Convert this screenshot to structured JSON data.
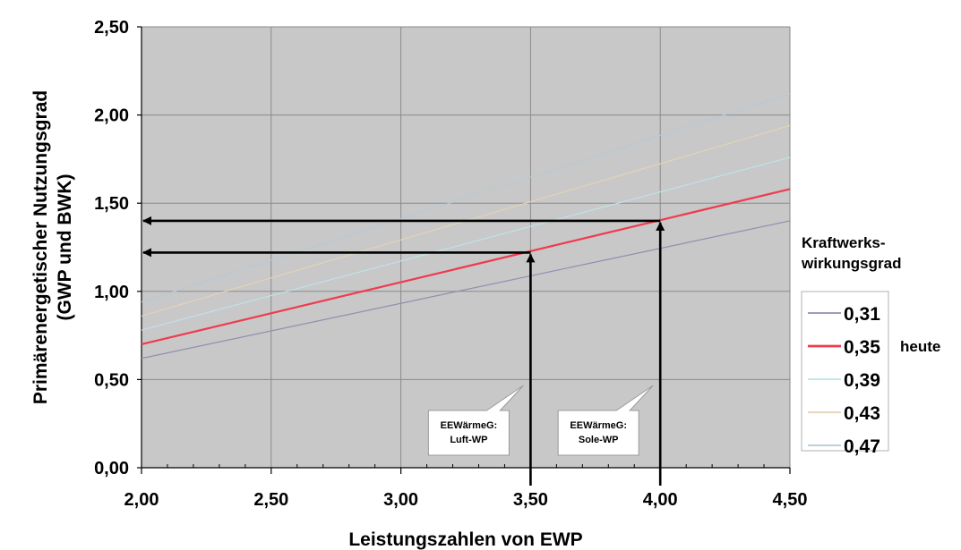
{
  "chart_data": {
    "type": "line",
    "xlabel": "Leistungszahlen von EWP",
    "ylabel": [
      "Primärenergetischer Nutzungsgrad",
      "(GWP und BWK)"
    ],
    "xlim": [
      2.0,
      4.5
    ],
    "ylim": [
      0.0,
      2.5
    ],
    "x_ticks": [
      "2,00",
      "2,50",
      "3,00",
      "3,50",
      "4,00",
      "4,50"
    ],
    "y_ticks": [
      "0,00",
      "0,50",
      "1,00",
      "1,50",
      "2,00",
      "2,50"
    ],
    "x_tick_values": [
      2.0,
      2.5,
      3.0,
      3.5,
      4.0,
      4.5
    ],
    "y_tick_values": [
      0.0,
      0.5,
      1.0,
      1.5,
      2.0,
      2.5
    ],
    "grid": true,
    "legend_title": [
      "Kraftwerks-",
      "wirkungsgrad"
    ],
    "legend_position": "right",
    "series": [
      {
        "name": "0,31",
        "color": "#8f8fb0",
        "width": 1.2,
        "x": [
          2.0,
          4.5
        ],
        "y": [
          0.62,
          1.4
        ]
      },
      {
        "name": "0,35",
        "color": "#ef3b4f",
        "width": 2.2,
        "note": "heute",
        "x": [
          2.0,
          4.5
        ],
        "y": [
          0.7,
          1.58
        ]
      },
      {
        "name": "0,39",
        "color": "#bfe2ea",
        "width": 1.2,
        "x": [
          2.0,
          4.5
        ],
        "y": [
          0.78,
          1.76
        ]
      },
      {
        "name": "0,43",
        "color": "#e3d3b6",
        "width": 1.2,
        "x": [
          2.0,
          4.5
        ],
        "y": [
          0.86,
          1.94
        ]
      },
      {
        "name": "0,47",
        "color": "#b6cad3",
        "width": 1.2,
        "x": [
          2.0,
          4.5
        ],
        "y": [
          0.94,
          2.12
        ]
      }
    ],
    "annotations": [
      {
        "label": [
          "EEWärmeG:",
          "Luft-WP"
        ],
        "x": 3.5,
        "y": 1.22
      },
      {
        "label": [
          "EEWärmeG:",
          "Sole-WP"
        ],
        "x": 4.0,
        "y": 1.4
      }
    ],
    "colors": {
      "plot_background": "#c8c8c8",
      "gridline": "#8a8a8a",
      "arrow": "#000000"
    }
  }
}
